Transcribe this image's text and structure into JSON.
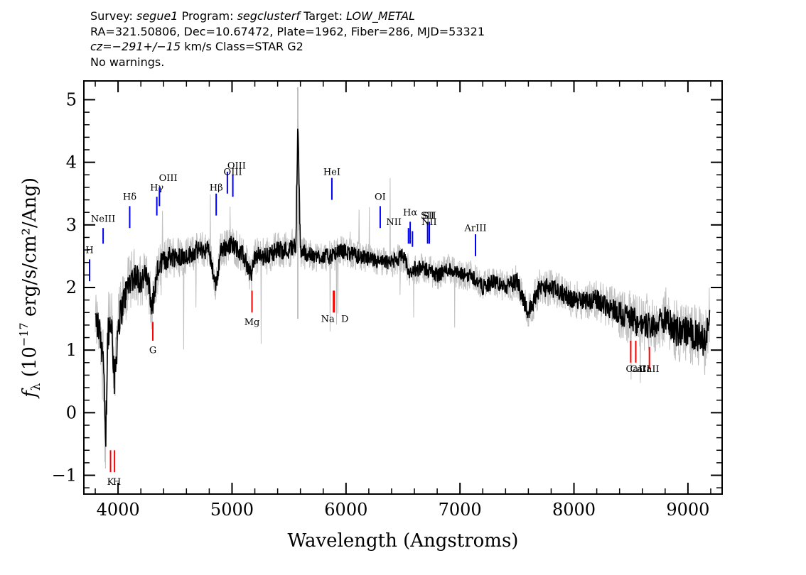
{
  "header": {
    "survey_label": "Survey:",
    "survey": "segue1",
    "program_label": "Program:",
    "program": "segclusterf",
    "target_label": "Target:",
    "target": "LOW_METAL",
    "line2": "RA=321.50806, Dec=10.67472, Plate=1962, Fiber=286, MJD=53321",
    "cz_label": "cz=",
    "cz_value": "−291+/−15",
    "cz_rest": "km/s Class=STAR G2",
    "warnings": "No warnings."
  },
  "colors": {
    "flux": "#000000",
    "error": "#c0c0c0",
    "emission": "#0000ff",
    "absorption": "#ff0000"
  },
  "chart_data": {
    "type": "line",
    "xlabel": "Wavelength (Angstroms)",
    "ylabel": "f_λ (10^-17 erg/s/cm²/Ang)",
    "xlim": [
      3700,
      9300
    ],
    "ylim": [
      -1.3,
      5.3
    ],
    "x_ticks": [
      4000,
      5000,
      6000,
      7000,
      8000,
      9000
    ],
    "y_ticks": [
      -1,
      0,
      1,
      2,
      3,
      4,
      5
    ],
    "series": [
      {
        "x": [
          3800,
          3840,
          3870,
          3890,
          3910,
          3940,
          3970,
          4000,
          4050,
          4100,
          4150,
          4200,
          4250,
          4300,
          4350,
          4400,
          4450,
          4500,
          4600,
          4700,
          4800,
          4860,
          4900,
          5000,
          5100,
          5170,
          5200,
          5300,
          5400,
          5500,
          5560,
          5577,
          5600,
          5700,
          5800,
          5890,
          5950,
          6100,
          6300,
          6400,
          6500,
          6563,
          6600,
          6700,
          6800,
          6900,
          7000,
          7100,
          7200,
          7300,
          7400,
          7500,
          7600,
          7700,
          7800,
          7900,
          8000,
          8100,
          8200,
          8300,
          8400,
          8500,
          8600,
          8700,
          8800,
          8900,
          9000,
          9100,
          9150,
          9190
        ],
        "y": [
          1.5,
          1.3,
          0.9,
          -0.6,
          1.3,
          1.5,
          0.5,
          1.4,
          1.8,
          2.1,
          2.2,
          2.1,
          2.2,
          1.7,
          2.3,
          2.4,
          2.5,
          2.5,
          2.5,
          2.6,
          2.6,
          2.0,
          2.6,
          2.7,
          2.5,
          2.2,
          2.5,
          2.5,
          2.6,
          2.6,
          2.7,
          4.55,
          2.6,
          2.5,
          2.5,
          2.5,
          2.6,
          2.5,
          2.4,
          2.4,
          2.5,
          2.2,
          2.3,
          2.3,
          2.2,
          2.3,
          2.2,
          2.2,
          2.0,
          2.1,
          2.0,
          2.1,
          1.6,
          2.0,
          2.0,
          1.9,
          1.8,
          1.8,
          1.8,
          1.7,
          1.6,
          1.5,
          1.4,
          1.4,
          1.5,
          1.3,
          1.3,
          1.2,
          1.1,
          1.55
        ]
      }
    ],
    "error_band": [
      0.55,
      0.5,
      0.6,
      0.7,
      0.6,
      0.55,
      0.7,
      0.55,
      0.5,
      0.45,
      0.45,
      0.45,
      0.4,
      0.45,
      0.4,
      0.4,
      0.35,
      0.35,
      0.3,
      0.3,
      0.3,
      0.3,
      0.3,
      0.3,
      0.3,
      0.3,
      0.3,
      0.3,
      0.3,
      0.3,
      0.3,
      0.6,
      0.3,
      0.25,
      0.25,
      0.25,
      0.25,
      0.25,
      0.25,
      0.25,
      0.25,
      0.25,
      0.25,
      0.25,
      0.25,
      0.25,
      0.25,
      0.25,
      0.25,
      0.25,
      0.25,
      0.3,
      0.3,
      0.3,
      0.3,
      0.3,
      0.3,
      0.3,
      0.35,
      0.35,
      0.4,
      0.45,
      0.45,
      0.45,
      0.45,
      0.5,
      0.5,
      0.5,
      0.5,
      0.5
    ],
    "emission_lines": [
      {
        "label": "H",
        "x": 3750,
        "y0": 2.1,
        "y1": 2.45,
        "lx": 3750,
        "ly": 2.55
      },
      {
        "label": "NeIII",
        "x": 3869,
        "y0": 2.7,
        "y1": 2.95,
        "lx": 3869,
        "ly": 3.05
      },
      {
        "label": "Hδ",
        "x": 4102,
        "y0": 2.95,
        "y1": 3.3,
        "lx": 4102,
        "ly": 3.4
      },
      {
        "label": "Hγ",
        "x": 4340,
        "y0": 3.15,
        "y1": 3.45,
        "lx": 4340,
        "ly": 3.55
      },
      {
        "label": "OIII",
        "x": 4363,
        "y0": 3.3,
        "y1": 3.6,
        "lx": 4440,
        "ly": 3.7
      },
      {
        "label": "Hβ",
        "x": 4861,
        "y0": 3.15,
        "y1": 3.5,
        "lx": 4861,
        "ly": 3.55
      },
      {
        "label": "OIII",
        "x": 4959,
        "y0": 3.5,
        "y1": 3.85,
        "lx": 5040,
        "ly": 3.9
      },
      {
        "label": "OIII",
        "x": 5007,
        "y0": 3.45,
        "y1": 3.8,
        "lx": 5007,
        "ly": 3.8
      },
      {
        "label": "HeI",
        "x": 5876,
        "y0": 3.4,
        "y1": 3.75,
        "lx": 5876,
        "ly": 3.8
      },
      {
        "label": "OI",
        "x": 6300,
        "y0": 2.95,
        "y1": 3.3,
        "lx": 6300,
        "ly": 3.4
      },
      {
        "label": "NII",
        "x": 6548,
        "y0": 2.7,
        "y1": 2.95,
        "lx": 6420,
        "ly": 3.0
      },
      {
        "label": "Hα",
        "x": 6563,
        "y0": 2.7,
        "y1": 3.05,
        "lx": 6563,
        "ly": 3.15
      },
      {
        "label": "NII",
        "x": 6583,
        "y0": 2.65,
        "y1": 2.9,
        "lx": 6730,
        "ly": 3.0
      },
      {
        "label": "SII",
        "x": 6716,
        "y0": 2.7,
        "y1": 3.05,
        "lx": 6716,
        "ly": 3.1
      },
      {
        "label": "SII",
        "x": 6731,
        "y0": 2.7,
        "y1": 3.05,
        "lx": 6731,
        "ly": 3.1
      },
      {
        "label": "ArIII",
        "x": 7136,
        "y0": 2.5,
        "y1": 2.85,
        "lx": 7136,
        "ly": 2.9
      }
    ],
    "absorption_lines": [
      {
        "label": "K",
        "x": 3934,
        "y0": -0.95,
        "y1": -0.6,
        "lx": 3934,
        "ly": -1.15
      },
      {
        "label": "H",
        "x": 3969,
        "y0": -0.95,
        "y1": -0.6,
        "lx": 3990,
        "ly": -1.15
      },
      {
        "label": "G",
        "x": 4305,
        "y0": 1.15,
        "y1": 1.45,
        "lx": 4305,
        "ly": 0.95
      },
      {
        "label": "Mg",
        "x": 5175,
        "y0": 1.6,
        "y1": 1.95,
        "lx": 5175,
        "ly": 1.4
      },
      {
        "label": "Na",
        "x": 5890,
        "y0": 1.6,
        "y1": 1.95,
        "lx": 5840,
        "ly": 1.45
      },
      {
        "label": "D",
        "x": 5896,
        "y0": 1.6,
        "y1": 1.95,
        "lx": 5990,
        "ly": 1.45
      },
      {
        "label": "CaII",
        "x": 8498,
        "y0": 0.8,
        "y1": 1.15,
        "lx": 8580,
        "ly": 0.65
      },
      {
        "label": "CaII",
        "x": 8542,
        "y0": 0.8,
        "y1": 1.15,
        "lx": 8542,
        "ly": 0.65
      },
      {
        "label": "CaII",
        "x": 8662,
        "y0": 0.7,
        "y1": 1.05,
        "lx": 8662,
        "ly": 0.65
      }
    ]
  }
}
